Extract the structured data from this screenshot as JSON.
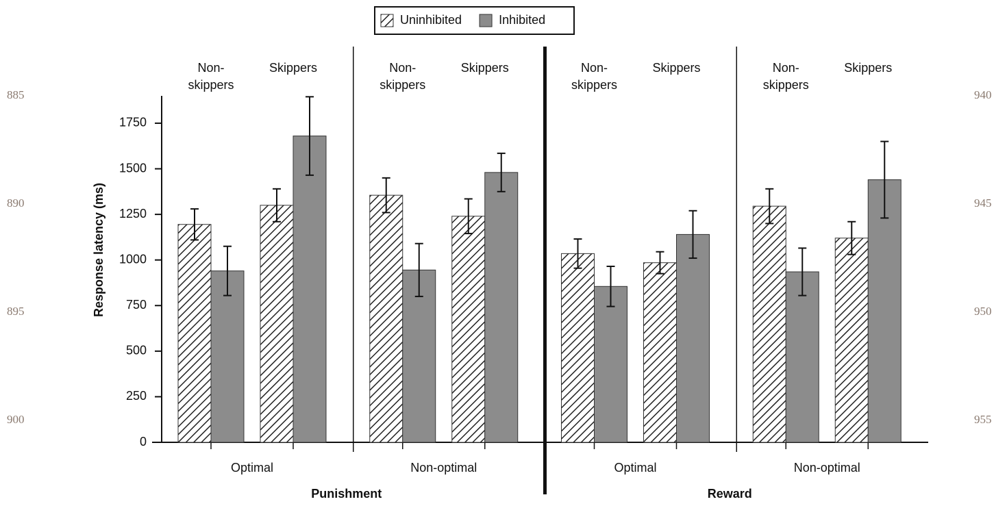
{
  "chart_data": {
    "type": "grouped_bar_error",
    "ylabel": "Response latency (ms)",
    "categories": [
      "Non-skippers",
      "Skippers",
      "Non-skippers",
      "Skippers",
      "Non-skippers",
      "Skippers",
      "Non-skippers",
      "Skippers"
    ],
    "conditions": [
      "Optimal",
      "Non-optimal",
      "Optimal",
      "Non-optimal"
    ],
    "panels": [
      "Punishment",
      "Reward"
    ],
    "series": [
      {
        "name": "Uninhibited",
        "color": "#ffffff",
        "hatch": true,
        "values": [
          1195,
          1300,
          1355,
          1240,
          1035,
          985,
          1295,
          1120
        ],
        "errors": [
          85,
          90,
          95,
          95,
          80,
          60,
          95,
          90
        ]
      },
      {
        "name": "Inhibited",
        "color": "#8c8c8c",
        "hatch": false,
        "values": [
          940,
          1680,
          945,
          1480,
          855,
          1140,
          935,
          1440
        ],
        "errors": [
          135,
          215,
          145,
          105,
          110,
          130,
          130,
          210
        ]
      }
    ],
    "ylim": [
      0,
      1900
    ],
    "yticks": [
      0,
      250,
      500,
      750,
      1000,
      1250,
      1500,
      1750
    ]
  },
  "line_numbers": {
    "left": [
      885,
      890,
      895,
      900
    ],
    "right": [
      940,
      945,
      950,
      955
    ]
  }
}
